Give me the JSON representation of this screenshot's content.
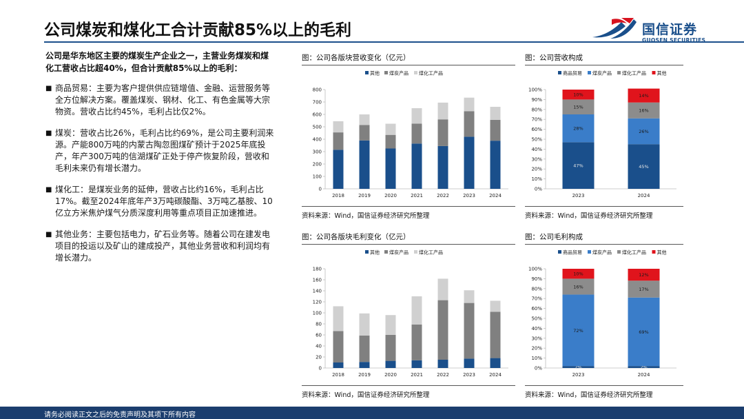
{
  "page": {
    "title": "公司煤炭和煤化工合计贡献85%以上的毛利",
    "footer": "请务必阅读正文之后的免责声明及其项下所有内容"
  },
  "logo": {
    "name_cn": "国信证券",
    "name_en": "GUOSEN SECURITIES",
    "colors": {
      "red": "#d7131f",
      "blue": "#1a4f8b"
    }
  },
  "intro": "公司是华东地区主要的煤炭生产企业之一，主营业务煤炭和煤化工营收占比超40%，但合计贡献85%以上的毛利：",
  "bullets": [
    {
      "text": "商品贸易：主要为客户提供供应链增值、金融、运营服务等全方位解决方案。覆盖煤炭、钢材、化工、有色金属等大宗物资。营收占比约45%，毛利占比仅2%。"
    },
    {
      "text": "煤炭：营收占比26%，毛利占比约69%，是公司主要利润来源。产能800万吨的内蒙古陶忽图煤矿预计于2025年底投产，年产300万吨的信湖煤矿正处于停产恢复阶段，营收和毛利未来仍有增长潜力。"
    },
    {
      "text": "煤化工：是煤炭业务的延伸，营收占比约16%，毛利占比17%。截至2024年底年产3万吨碳酸酯、3万吨乙基胺、10亿立方米焦炉煤气分质深度利用等重点项目正加速推进。"
    },
    {
      "text": "其他业务：主要包括电力，矿石业务等。随着公司在建发电项目的投运以及矿山的建成投产，其他业务营收和利润均有增长潜力。"
    }
  ],
  "panels": {
    "rev_abs": {
      "title": "图：公司各版块营收变化（亿元）",
      "source": "资料来源：Wind，国信证券经济研究所整理"
    },
    "rev_pct": {
      "title": "图：公司营收构成",
      "source": "资料来源：Wind，国信证券经济研究所整理"
    },
    "gp_abs": {
      "title": "图：公司各版块毛利变化（亿元）",
      "source": "资料来源：Wind，国信证券经济研究所整理"
    },
    "gp_pct": {
      "title": "图：公司毛利构成",
      "source": "资料来源：Wind，国信证券经济研究所整理"
    }
  },
  "chart_data": [
    {
      "id": "rev_abs",
      "type": "bar",
      "stacked": true,
      "title": "图：公司各版块营收变化（亿元）",
      "categories": [
        "2018",
        "2019",
        "2020",
        "2021",
        "2022",
        "2023",
        "2024"
      ],
      "series": [
        {
          "name": "其他",
          "color": "#1a4f8b",
          "values": [
            315,
            390,
            325,
            365,
            345,
            420,
            388
          ]
        },
        {
          "name": "煤炭产品",
          "color": "#808080",
          "values": [
            140,
            125,
            110,
            160,
            215,
            205,
            168
          ]
        },
        {
          "name": "煤化工产品",
          "color": "#d0d0d0",
          "values": [
            90,
            85,
            90,
            125,
            135,
            110,
            105
          ]
        }
      ],
      "ylim": [
        0,
        800
      ],
      "yticks": [
        0,
        100,
        200,
        300,
        400,
        500,
        600,
        700,
        800
      ],
      "legend": "top",
      "grid": false
    },
    {
      "id": "rev_pct",
      "type": "bar",
      "stacked": true,
      "percent": true,
      "title": "图：公司营收构成",
      "categories": [
        "2023",
        "2024"
      ],
      "series": [
        {
          "name": "商品贸易",
          "color": "#1a4f8b",
          "values": [
            47,
            45
          ],
          "labels": [
            "47%",
            "45%"
          ]
        },
        {
          "name": "煤炭产品",
          "color": "#3a7dc9",
          "values": [
            28,
            26
          ],
          "labels": [
            "28%",
            "26%"
          ]
        },
        {
          "name": "煤化工产品",
          "color": "#8c8c8c",
          "values": [
            15,
            16
          ],
          "labels": [
            "15%",
            "16%"
          ]
        },
        {
          "name": "其他",
          "color": "#e0141c",
          "values": [
            10,
            14
          ],
          "labels": [
            "10%",
            "14%"
          ]
        }
      ],
      "ylim": [
        0,
        100
      ],
      "yticks": [
        "0%",
        "10%",
        "20%",
        "30%",
        "40%",
        "50%",
        "60%",
        "70%",
        "80%",
        "90%",
        "100%"
      ],
      "legend": "top",
      "grid": false
    },
    {
      "id": "gp_abs",
      "type": "bar",
      "stacked": true,
      "title": "图：公司各版块毛利变化（亿元）",
      "categories": [
        "2018",
        "2019",
        "2020",
        "2021",
        "2022",
        "2023",
        "2024"
      ],
      "series": [
        {
          "name": "其他",
          "color": "#1a4f8b",
          "values": [
            10,
            11,
            13,
            14,
            15,
            17,
            18
          ]
        },
        {
          "name": "煤炭产品",
          "color": "#808080",
          "values": [
            57,
            48,
            47,
            65,
            108,
            101,
            84
          ]
        },
        {
          "name": "煤化工产品",
          "color": "#d0d0d0",
          "values": [
            45,
            40,
            36,
            51,
            39,
            23,
            20
          ]
        }
      ],
      "ylim": [
        0,
        180
      ],
      "yticks": [
        0,
        20,
        40,
        60,
        80,
        100,
        120,
        140,
        160,
        180
      ],
      "legend": "top",
      "grid": false
    },
    {
      "id": "gp_pct",
      "type": "bar",
      "stacked": true,
      "percent": true,
      "title": "图：公司毛利构成",
      "categories": [
        "2023",
        "2024"
      ],
      "series": [
        {
          "name": "商品贸易",
          "color": "#1a4f8b",
          "values": [
            2,
            2
          ],
          "labels": [
            "2%",
            "2%"
          ]
        },
        {
          "name": "煤炭产品",
          "color": "#3a7dc9",
          "values": [
            72,
            69
          ],
          "labels": [
            "72%",
            "69%"
          ]
        },
        {
          "name": "煤化工产品",
          "color": "#8c8c8c",
          "values": [
            16,
            17
          ],
          "labels": [
            "16%",
            "17%"
          ]
        },
        {
          "name": "其他",
          "color": "#e0141c",
          "values": [
            10,
            12
          ],
          "labels": [
            "10%",
            "12%"
          ]
        }
      ],
      "ylim": [
        0,
        100
      ],
      "yticks": [
        "0%",
        "10%",
        "20%",
        "30%",
        "40%",
        "50%",
        "60%",
        "70%",
        "80%",
        "90%",
        "100%"
      ],
      "legend": "top",
      "grid": false
    }
  ]
}
